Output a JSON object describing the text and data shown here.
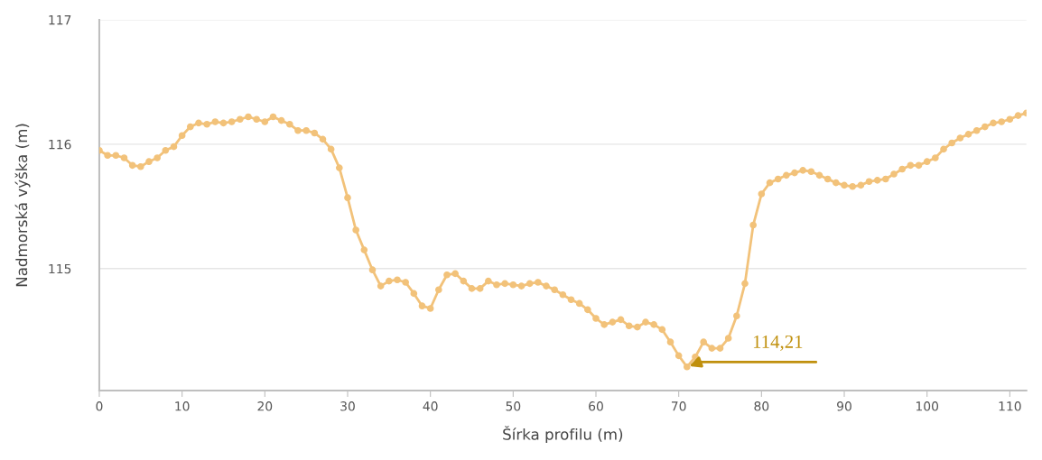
{
  "chart_data": {
    "type": "line",
    "xlabel": "Šírka profilu (m)",
    "ylabel": "Nadmorská výška (m)",
    "x": [
      0,
      1,
      2,
      3,
      4,
      5,
      6,
      7,
      8,
      9,
      10,
      11,
      12,
      13,
      14,
      15,
      16,
      17,
      18,
      19,
      20,
      21,
      22,
      23,
      24,
      25,
      26,
      27,
      28,
      29,
      30,
      31,
      32,
      33,
      34,
      35,
      36,
      37,
      38,
      39,
      40,
      41,
      42,
      43,
      44,
      45,
      46,
      47,
      48,
      49,
      50,
      51,
      52,
      53,
      54,
      55,
      56,
      57,
      58,
      59,
      60,
      61,
      62,
      63,
      64,
      65,
      66,
      67,
      68,
      69,
      70,
      71,
      72,
      73,
      74,
      75,
      76,
      77,
      78,
      79,
      80,
      81,
      82,
      83,
      84,
      85,
      86,
      87,
      88,
      89,
      90,
      91,
      92,
      93,
      94,
      95,
      96,
      97,
      98,
      99,
      100,
      101,
      102,
      103,
      104,
      105,
      106,
      107,
      108,
      109,
      110,
      111,
      112
    ],
    "series": [
      {
        "color": "#f2c27a",
        "values": [
          115.95,
          115.91,
          115.91,
          115.89,
          115.83,
          115.82,
          115.86,
          115.89,
          115.95,
          115.98,
          116.07,
          116.14,
          116.17,
          116.16,
          116.18,
          116.17,
          116.18,
          116.2,
          116.22,
          116.2,
          116.18,
          116.22,
          116.19,
          116.16,
          116.11,
          116.11,
          116.09,
          116.04,
          115.96,
          115.81,
          115.57,
          115.31,
          115.15,
          114.99,
          114.86,
          114.9,
          114.91,
          114.89,
          114.8,
          114.7,
          114.68,
          114.83,
          114.95,
          114.96,
          114.9,
          114.84,
          114.84,
          114.9,
          114.87,
          114.88,
          114.87,
          114.86,
          114.88,
          114.89,
          114.86,
          114.83,
          114.79,
          114.75,
          114.72,
          114.67,
          114.6,
          114.55,
          114.57,
          114.59,
          114.54,
          114.53,
          114.57,
          114.55,
          114.51,
          114.41,
          114.3,
          114.21,
          114.29,
          114.41,
          114.36,
          114.36,
          114.44,
          114.62,
          114.88,
          115.35,
          115.6,
          115.69,
          115.72,
          115.75,
          115.77,
          115.79,
          115.78,
          115.75,
          115.72,
          115.69,
          115.67,
          115.66,
          115.67,
          115.7,
          115.71,
          115.72,
          115.76,
          115.8,
          115.83,
          115.83,
          115.86,
          115.89,
          115.96,
          116.01,
          116.05,
          116.08,
          116.11,
          116.14,
          116.17,
          116.18,
          116.2,
          116.23,
          116.25
        ]
      }
    ],
    "xlim": [
      0,
      112
    ],
    "xticks": [
      0,
      10,
      20,
      30,
      40,
      50,
      60,
      70,
      80,
      90,
      100,
      110
    ],
    "ylim": [
      114.02,
      117
    ],
    "yticks": [
      115,
      116,
      117
    ],
    "grid": "y",
    "marker": "circle",
    "line_style": "solid",
    "annotations": [
      {
        "text": "114,21",
        "x": 71,
        "y": 114.21
      }
    ]
  }
}
